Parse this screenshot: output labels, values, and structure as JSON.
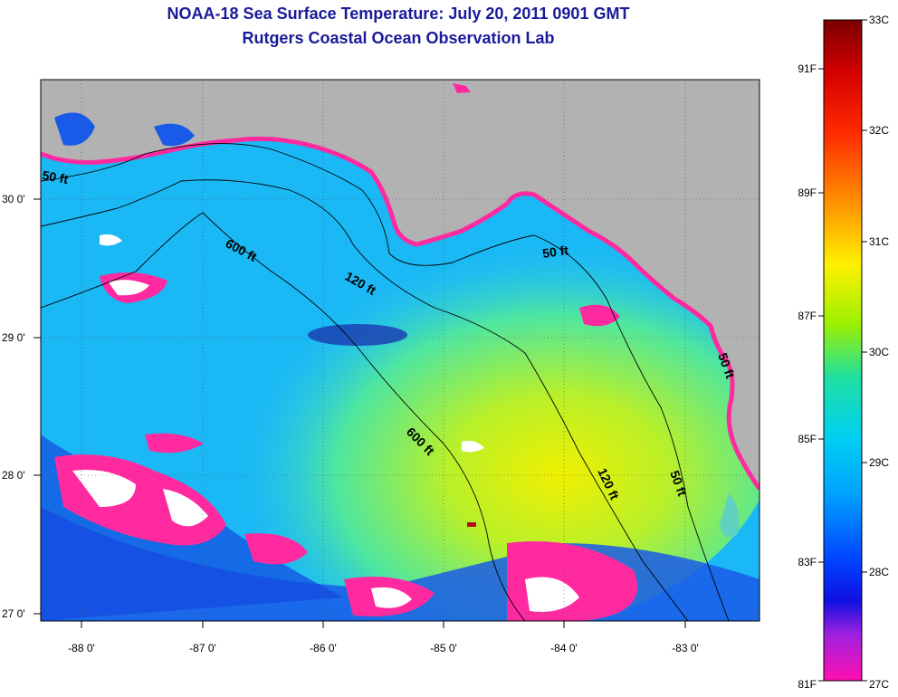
{
  "title": "NOAA-18 Sea Surface Temperature:  July 20, 2011 0901 GMT",
  "subtitle": "Rutgers Coastal Ocean Observation Lab",
  "axes": {
    "lon_labels": [
      "-88 0'",
      "-87 0'",
      "-86 0'",
      "-85 0'",
      "-84 0'",
      "-83 0'"
    ],
    "lat_labels": [
      "30 0'",
      "29 0'",
      "28 0'",
      "27 0'"
    ]
  },
  "contours": [
    "50 ft",
    "600 ft",
    "120 ft",
    "50 ft",
    "600 ft",
    "120 ft",
    "50 ft",
    "50 ft"
  ],
  "colorbar": {
    "celsius": [
      "33C",
      "32C",
      "31C",
      "30C",
      "29C",
      "28C",
      "27C"
    ],
    "fahrenheit": [
      "91F",
      "89F",
      "87F",
      "85F",
      "83F",
      "81F"
    ]
  },
  "colors": {
    "land": "#b2b2b2",
    "title": "#1a1a9a",
    "cold_edge": "#ff2aa0"
  }
}
